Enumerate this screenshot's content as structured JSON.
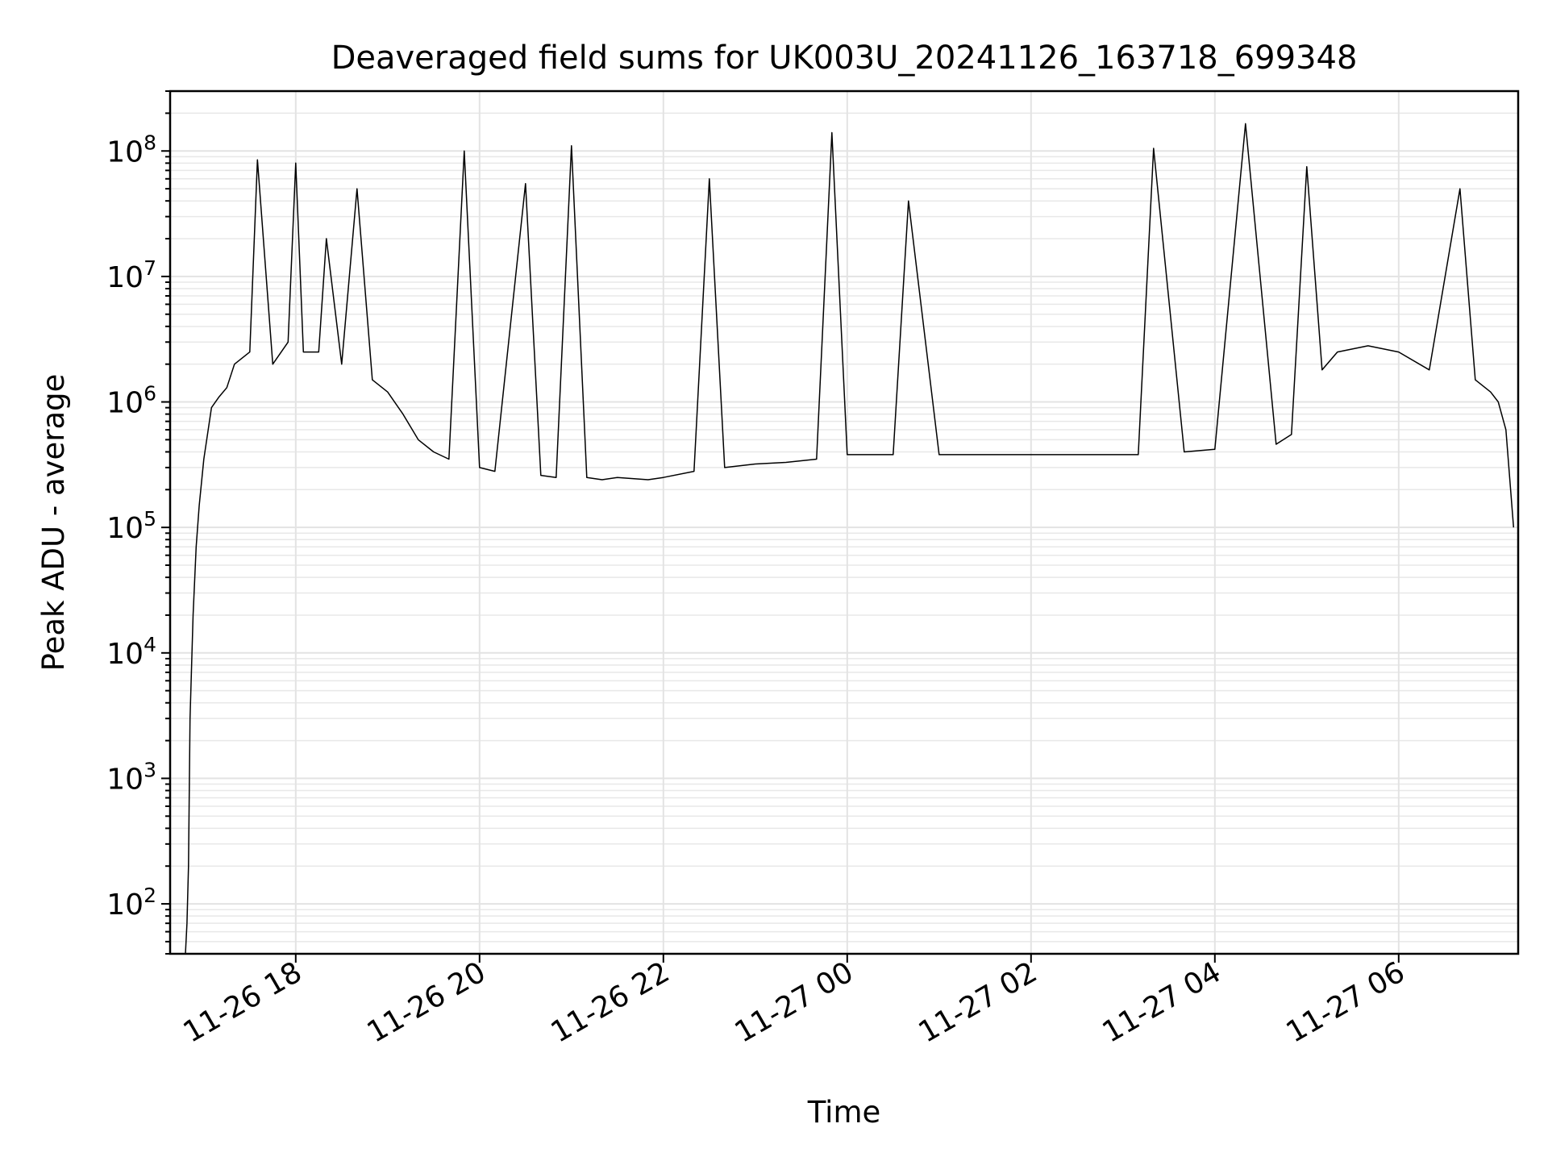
{
  "chart_data": {
    "type": "line",
    "title": "Deaveraged field sums for UK003U_20241126_163718_699348",
    "xlabel": "Time",
    "ylabel": "Peak ADU - average",
    "yscale": "log",
    "ylim": [
      40,
      300000000
    ],
    "xlim": [
      "2024-11-26 16:38",
      "2024-11-27 07:18"
    ],
    "grid": true,
    "line_color": "#000000",
    "x_ticks": [
      {
        "label": "11-26 18",
        "value": "2024-11-26 18:00"
      },
      {
        "label": "11-26 20",
        "value": "2024-11-26 20:00"
      },
      {
        "label": "11-26 22",
        "value": "2024-11-26 22:00"
      },
      {
        "label": "11-27 00",
        "value": "2024-11-27 00:00"
      },
      {
        "label": "11-27 02",
        "value": "2024-11-27 02:00"
      },
      {
        "label": "11-27 04",
        "value": "2024-11-27 04:00"
      },
      {
        "label": "11-27 06",
        "value": "2024-11-27 06:00"
      }
    ],
    "y_ticks": [
      {
        "base": "10",
        "exp": "2",
        "value": 100
      },
      {
        "base": "10",
        "exp": "3",
        "value": 1000
      },
      {
        "base": "10",
        "exp": "4",
        "value": 10000
      },
      {
        "base": "10",
        "exp": "5",
        "value": 100000
      },
      {
        "base": "10",
        "exp": "6",
        "value": 1000000
      },
      {
        "base": "10",
        "exp": "7",
        "value": 10000000
      },
      {
        "base": "10",
        "exp": "8",
        "value": 100000000
      }
    ],
    "series": [
      {
        "x": [
          "2024-11-26 16:48",
          "2024-11-26 16:49",
          "2024-11-26 16:50",
          "2024-11-26 16:51",
          "2024-11-26 16:53",
          "2024-11-26 16:55",
          "2024-11-26 16:57",
          "2024-11-26 17:00",
          "2024-11-26 17:05",
          "2024-11-26 17:10",
          "2024-11-26 17:15",
          "2024-11-26 17:20",
          "2024-11-26 17:30",
          "2024-11-26 17:35",
          "2024-11-26 17:45",
          "2024-11-26 17:55",
          "2024-11-26 18:00",
          "2024-11-26 18:05",
          "2024-11-26 18:15",
          "2024-11-26 18:20",
          "2024-11-26 18:30",
          "2024-11-26 18:40",
          "2024-11-26 18:50",
          "2024-11-26 19:00",
          "2024-11-26 19:10",
          "2024-11-26 19:20",
          "2024-11-26 19:30",
          "2024-11-26 19:40",
          "2024-11-26 19:50",
          "2024-11-26 20:00",
          "2024-11-26 20:10",
          "2024-11-26 20:30",
          "2024-11-26 20:40",
          "2024-11-26 20:50",
          "2024-11-26 21:00",
          "2024-11-26 21:10",
          "2024-11-26 21:20",
          "2024-11-26 21:30",
          "2024-11-26 21:50",
          "2024-11-26 22:00",
          "2024-11-26 22:20",
          "2024-11-26 22:30",
          "2024-11-26 22:40",
          "2024-11-26 23:00",
          "2024-11-26 23:20",
          "2024-11-26 23:40",
          "2024-11-26 23:50",
          "2024-11-27 00:00",
          "2024-11-27 00:15",
          "2024-11-27 00:30",
          "2024-11-27 00:40",
          "2024-11-27 01:00",
          "2024-11-27 01:20",
          "2024-11-27 01:40",
          "2024-11-27 02:00",
          "2024-11-27 02:20",
          "2024-11-27 02:30",
          "2024-11-27 02:50",
          "2024-11-27 03:00",
          "2024-11-27 03:10",
          "2024-11-27 03:20",
          "2024-11-27 03:40",
          "2024-11-27 04:00",
          "2024-11-27 04:20",
          "2024-11-27 04:40",
          "2024-11-27 04:50",
          "2024-11-27 05:00",
          "2024-11-27 05:10",
          "2024-11-27 05:20",
          "2024-11-27 05:40",
          "2024-11-27 06:00",
          "2024-11-27 06:20",
          "2024-11-27 06:40",
          "2024-11-27 06:50",
          "2024-11-27 07:00",
          "2024-11-27 07:05",
          "2024-11-27 07:10",
          "2024-11-27 07:15"
        ],
        "values": [
          40,
          70,
          200,
          3000,
          20000,
          70000,
          150000,
          350000,
          900000,
          1100000,
          1300000,
          2000000,
          2500000,
          85000000,
          2000000,
          3000000,
          80000000,
          2500000,
          2500000,
          20000000,
          2000000,
          50000000,
          1500000,
          1200000,
          800000,
          500000,
          400000,
          350000,
          100000000,
          300000,
          280000,
          55000000,
          260000,
          250000,
          110000000,
          250000,
          240000,
          250000,
          240000,
          250000,
          280000,
          60000000,
          300000,
          320000,
          330000,
          350000,
          140000000,
          380000,
          380000,
          380000,
          40000000,
          380000,
          380000,
          380000,
          380000,
          380000,
          380000,
          380000,
          380000,
          380000,
          105000000,
          400000,
          420000,
          165000000,
          460000,
          550000,
          75000000,
          1800000,
          2500000,
          2800000,
          2500000,
          1800000,
          50000000,
          1500000,
          1200000,
          1000000,
          600000,
          100000
        ]
      }
    ]
  }
}
